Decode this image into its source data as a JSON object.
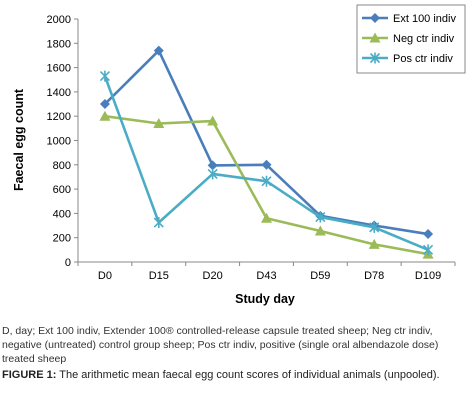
{
  "chart_data": {
    "type": "line",
    "categories": [
      "D0",
      "D15",
      "D20",
      "D43",
      "D59",
      "D78",
      "D109"
    ],
    "series": [
      {
        "name": "Ext 100 indiv",
        "color": "#4a7ebb",
        "marker": "diamond",
        "values": [
          1300,
          1740,
          795,
          800,
          380,
          300,
          230
        ]
      },
      {
        "name": "Neg ctr indiv",
        "color": "#9bbb59",
        "marker": "triangle",
        "values": [
          1200,
          1140,
          1160,
          360,
          255,
          145,
          65
        ]
      },
      {
        "name": "Pos ctr indiv",
        "color": "#4bacc6",
        "marker": "star",
        "values": [
          1530,
          325,
          725,
          665,
          370,
          285,
          100
        ]
      }
    ],
    "ylim": [
      0,
      2000
    ],
    "yticks": [
      "0",
      "200",
      "400",
      "600",
      "800",
      "1000",
      "1200",
      "1400",
      "1600",
      "1800",
      "2000"
    ],
    "xlabel": "Study day",
    "ylabel": "Faecal egg count",
    "legend_position": "top-right",
    "grid": false
  },
  "caption": {
    "note": "D, day; Ext 100 indiv, Extender 100® controlled-release capsule treated sheep; Neg ctr indiv, negative (untreated) control group sheep; Pos ctr indiv, positive (single oral albendazole dose) treated sheep",
    "figure_label": "FIGURE 1:",
    "figure_text": " The arithmetic mean faecal egg count scores of individual animals (unpooled)."
  }
}
